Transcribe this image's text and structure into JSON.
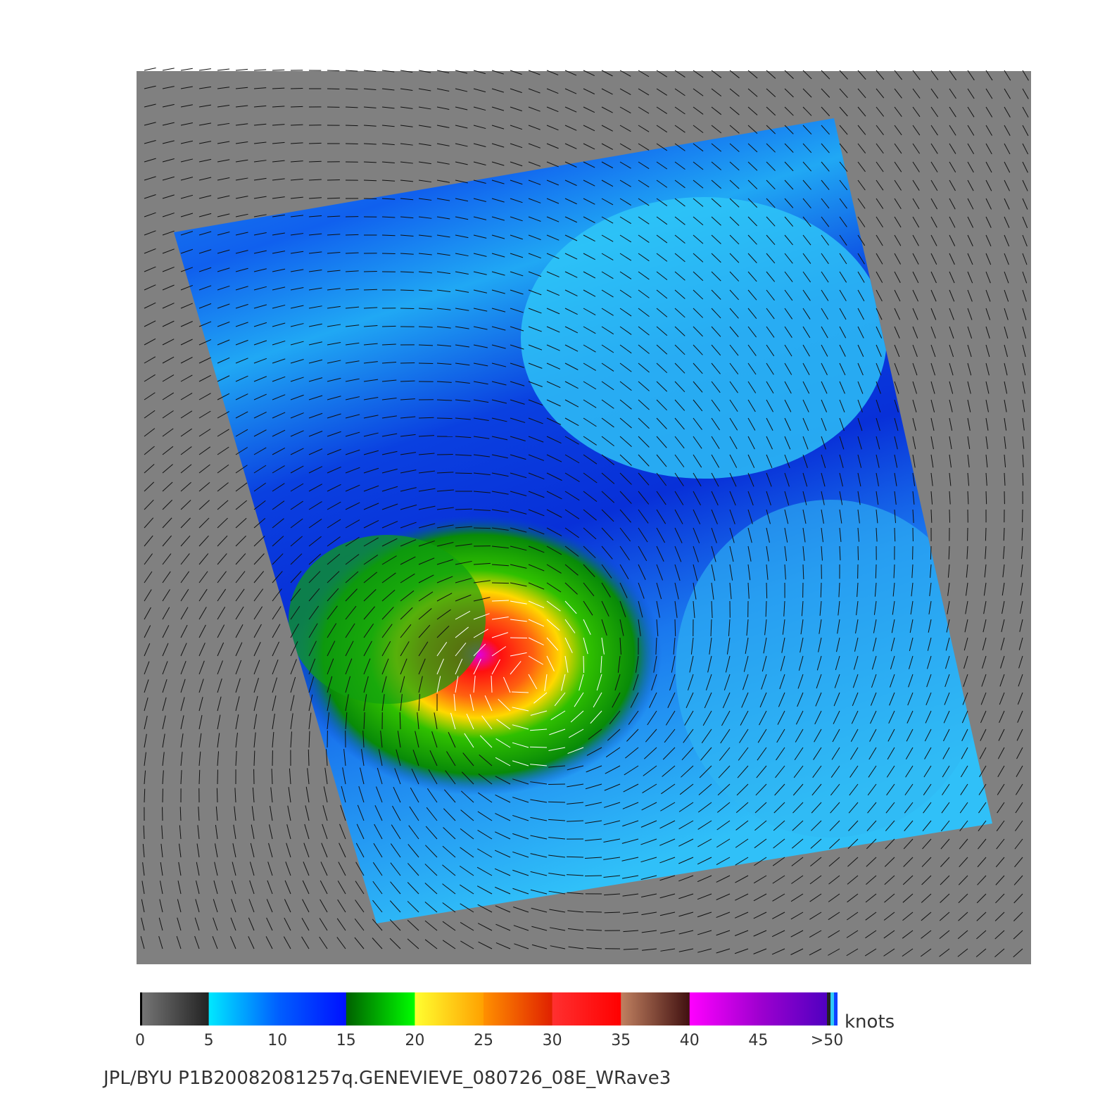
{
  "colorbar": {
    "ticks": [
      0,
      5,
      10,
      15,
      20,
      25,
      30,
      35,
      40,
      45,
      {
        "value": 50,
        "label": ">50"
      }
    ],
    "unit": "knots"
  },
  "caption": "JPL/BYU  P1B20082081257q.GENEVIEVE_080726_08E_WRave3"
}
